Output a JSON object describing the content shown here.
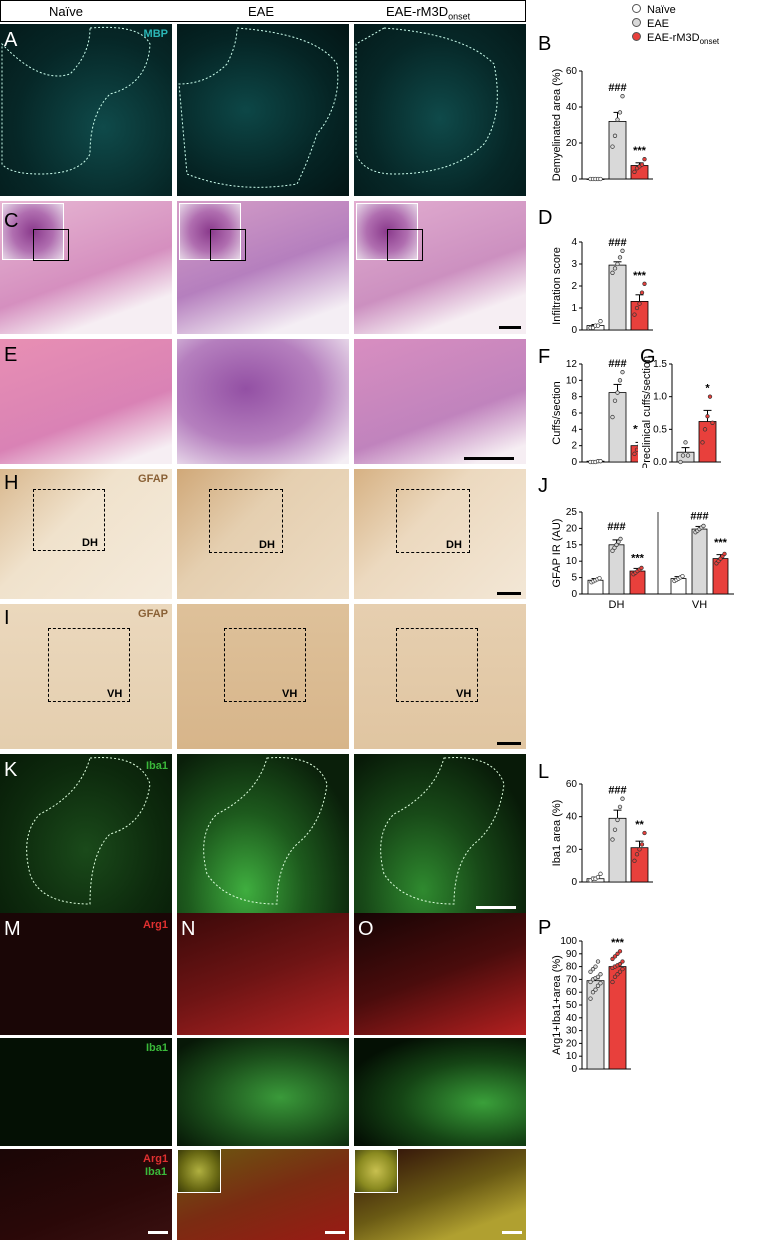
{
  "header": {
    "col1": "Naïve",
    "col2": "EAE",
    "col3_main": "EAE-rM3D",
    "col3_sub": "onset"
  },
  "legend": {
    "naive": "Naïve",
    "eae": "EAE",
    "rm3d_main": "EAE-rM3D",
    "rm3d_sub": "onset"
  },
  "letters": {
    "A": "A",
    "B": "B",
    "C": "C",
    "D": "D",
    "E": "E",
    "F": "F",
    "G": "G",
    "H": "H",
    "I": "I",
    "J": "J",
    "K": "K",
    "L": "L",
    "M": "M",
    "N": "N",
    "O": "O",
    "P": "P"
  },
  "stains": {
    "mbp": "MBP",
    "gfap_h": "GFAP",
    "gfap_i": "GFAP",
    "iba1_k": "Iba1",
    "arg1_m": "Arg1",
    "iba1_m": "Iba1",
    "arg1_merge": "Arg1",
    "iba1_merge": "Iba1"
  },
  "regions": {
    "dh": "DH",
    "vh": "VH"
  },
  "colors": {
    "naive_fill": "#ffffff",
    "eae_fill": "#d9d9d9",
    "rm3d_fill": "#e8403c",
    "mbp": "#2bb6b6",
    "gfap": "#8a6136",
    "iba1": "#3ab93a",
    "arg1": "#e03030"
  },
  "chart_data": [
    {
      "id": "B",
      "type": "bar",
      "categories": [
        "Naïve",
        "EAE",
        "EAE-rM3Donset"
      ],
      "values": [
        0,
        32,
        7.5
      ],
      "errors": [
        0,
        5,
        1.5
      ],
      "points": [
        [
          0,
          0,
          0,
          0,
          0
        ],
        [
          18,
          24,
          33,
          37,
          46
        ],
        [
          4,
          6,
          7,
          8,
          11
        ]
      ],
      "ylabel": "Demyelinated area (%)",
      "yticks": [
        0,
        20,
        40,
        60
      ],
      "ylim": [
        0,
        60
      ],
      "sig": [
        {
          "bar": 1,
          "text": "###"
        },
        {
          "bar": 2,
          "text": "***"
        }
      ]
    },
    {
      "id": "D",
      "type": "bar",
      "categories": [
        "Naïve",
        "EAE",
        "EAE-rM3Donset"
      ],
      "values": [
        0.2,
        2.95,
        1.3
      ],
      "errors": [
        0.05,
        0.15,
        0.3
      ],
      "points": [
        [
          0.1,
          0.1,
          0.2,
          0.2,
          0.4
        ],
        [
          2.6,
          2.8,
          3.0,
          3.3,
          3.6
        ],
        [
          0.7,
          1.0,
          1.2,
          1.7,
          2.1
        ]
      ],
      "ylabel": "Infiltration score",
      "yticks": [
        0,
        1,
        2,
        3,
        4
      ],
      "ylim": [
        0,
        4
      ],
      "sig": [
        {
          "bar": 1,
          "text": "###"
        },
        {
          "bar": 2,
          "text": "***"
        }
      ]
    },
    {
      "id": "F",
      "type": "bar",
      "categories": [
        "Naïve",
        "EAE",
        "EAE-rM3Donset"
      ],
      "values": [
        0.1,
        8.5,
        2.0
      ],
      "errors": [
        0.05,
        1.0,
        0.4
      ],
      "points": [
        [
          0,
          0,
          0,
          0.1,
          0.1
        ],
        [
          5.5,
          7.5,
          8.5,
          10.0,
          11.0
        ],
        [
          1.0,
          1.5,
          2.0,
          2.5,
          3.0
        ]
      ],
      "ylabel": "Cuffs/section",
      "yticks": [
        0,
        2,
        4,
        6,
        8,
        10,
        12
      ],
      "ylim": [
        0,
        12
      ],
      "sig": [
        {
          "bar": 1,
          "text": "###"
        },
        {
          "bar": 2,
          "text": "***"
        }
      ]
    },
    {
      "id": "G",
      "type": "bar",
      "categories": [
        "EAE",
        "EAE-rM3Donset"
      ],
      "values": [
        0.15,
        0.62
      ],
      "errors": [
        0.07,
        0.17
      ],
      "points": [
        [
          0,
          0.1,
          0.3,
          0.1
        ],
        [
          0.3,
          0.5,
          0.7,
          1.0,
          0.6
        ]
      ],
      "ylabel": "Preclinical cuffs/section",
      "yticks": [
        0,
        0.5,
        1.0,
        1.5
      ],
      "yticklabels": [
        "0.0",
        "0.5",
        "1.0",
        "1.5"
      ],
      "ylim": [
        0,
        1.5
      ],
      "sig": [
        {
          "bar": 1,
          "text": "*"
        }
      ]
    },
    {
      "id": "J",
      "type": "grouped-bar",
      "groups": [
        "DH",
        "VH"
      ],
      "series": [
        {
          "name": "Naïve",
          "values": [
            4.2,
            4.7
          ],
          "errors": [
            0.5,
            0.6
          ]
        },
        {
          "name": "EAE",
          "values": [
            15,
            19.8
          ],
          "errors": [
            1.5,
            0.8
          ]
        },
        {
          "name": "EAE-rM3Donset",
          "values": [
            7,
            10.8
          ],
          "errors": [
            0.8,
            1.2
          ]
        }
      ],
      "ylabel": "GFAP IR (AU)",
      "yticks": [
        0,
        5,
        10,
        15,
        20,
        25
      ],
      "ylim": [
        0,
        25
      ],
      "sig": [
        {
          "group": 0,
          "bar": 1,
          "text": "###"
        },
        {
          "group": 0,
          "bar": 2,
          "text": "***"
        },
        {
          "group": 1,
          "bar": 1,
          "text": "###"
        },
        {
          "group": 1,
          "bar": 2,
          "text": "***"
        }
      ]
    },
    {
      "id": "L",
      "type": "bar",
      "categories": [
        "Naïve",
        "EAE",
        "EAE-rM3Donset"
      ],
      "values": [
        2,
        39,
        21
      ],
      "errors": [
        1,
        5,
        4
      ],
      "points": [
        [
          1,
          2,
          2,
          3,
          5
        ],
        [
          26,
          32,
          38,
          46,
          51
        ],
        [
          13,
          17,
          20,
          23,
          30
        ]
      ],
      "ylabel": "Iba1 area (%)",
      "yticks": [
        0,
        20,
        40,
        60
      ],
      "ylim": [
        0,
        60
      ],
      "sig": [
        {
          "bar": 1,
          "text": "###"
        },
        {
          "bar": 2,
          "text": "**"
        }
      ]
    },
    {
      "id": "P",
      "type": "bar",
      "categories": [
        "EAE",
        "EAE-rM3Donset"
      ],
      "values": [
        69,
        80
      ],
      "errors": [
        1.5,
        1.2
      ],
      "points": [
        [
          55,
          60,
          62,
          65,
          67,
          68,
          70,
          71,
          72,
          74,
          76,
          78,
          80,
          84
        ],
        [
          68,
          72,
          74,
          76,
          78,
          79,
          80,
          81,
          82,
          84,
          86,
          88,
          90,
          92
        ]
      ],
      "ylabel": "Arg1+Iba1+area (%)",
      "yticks": [
        0,
        10,
        20,
        30,
        40,
        50,
        60,
        70,
        80,
        90,
        100
      ],
      "ylim": [
        0,
        100
      ],
      "sig": [
        {
          "bar": 1,
          "text": "***"
        }
      ]
    }
  ]
}
